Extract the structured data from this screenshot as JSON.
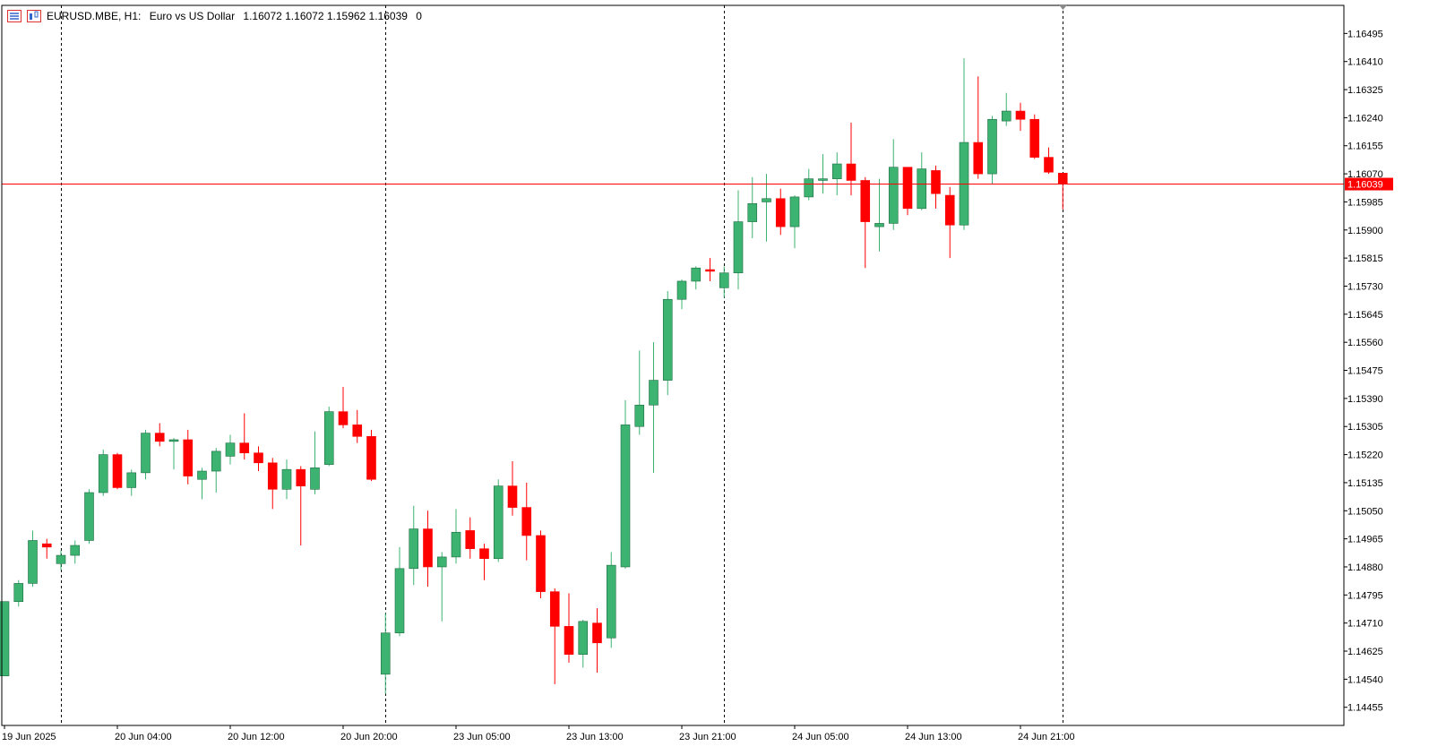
{
  "header": {
    "symbol": "EURUSD.MBE, H1:",
    "description": "Euro vs US Dollar",
    "ohlc": "1.16072 1.16072 1.15962 1.16039",
    "extra": "0"
  },
  "colors": {
    "bull": "#3cb371",
    "bear": "#ff0000",
    "outline": "#000000",
    "current_line": "#ff0000",
    "grid_separator": "#000000"
  },
  "chart_data": {
    "type": "candlestick",
    "symbol": "EURUSD.MBE",
    "timeframe": "H1",
    "ylim": [
      1.144,
      1.1658
    ],
    "y_ticks": [
      "1.16495",
      "1.16410",
      "1.16325",
      "1.16240",
      "1.16155",
      "1.16070",
      "1.15985",
      "1.15900",
      "1.15815",
      "1.15730",
      "1.15645",
      "1.15560",
      "1.15475",
      "1.15390",
      "1.15305",
      "1.15220",
      "1.15135",
      "1.15050",
      "1.14965",
      "1.14880",
      "1.14795",
      "1.14710",
      "1.14625",
      "1.14540",
      "1.14455"
    ],
    "x_ticks": [
      {
        "index": 0,
        "label": "19 Jun 2025"
      },
      {
        "index": 8,
        "label": "20 Jun 04:00"
      },
      {
        "index": 16,
        "label": "20 Jun 12:00"
      },
      {
        "index": 24,
        "label": "20 Jun 20:00"
      },
      {
        "index": 32,
        "label": "23 Jun 05:00"
      },
      {
        "index": 40,
        "label": "23 Jun 13:00"
      },
      {
        "index": 48,
        "label": "23 Jun 21:00"
      },
      {
        "index": 56,
        "label": "24 Jun 05:00"
      },
      {
        "index": 64,
        "label": "24 Jun 13:00"
      },
      {
        "index": 72,
        "label": "24 Jun 21:00"
      }
    ],
    "separators": [
      4,
      27,
      51,
      75
    ],
    "current_price": "1.16039",
    "candles": [
      [
        1.1455,
        1.14775,
        1.1455,
        1.14775
      ],
      [
        1.14775,
        1.1484,
        1.1476,
        1.1483
      ],
      [
        1.1483,
        1.1499,
        1.1482,
        1.1496
      ],
      [
        1.1495,
        1.14965,
        1.14905,
        1.1494
      ],
      [
        1.1489,
        1.1493,
        1.1487,
        1.14915
      ],
      [
        1.14915,
        1.1496,
        1.1489,
        1.14945
      ],
      [
        1.1496,
        1.15115,
        1.1495,
        1.15105
      ],
      [
        1.15105,
        1.15235,
        1.15095,
        1.1522
      ],
      [
        1.1522,
        1.15225,
        1.15115,
        1.1512
      ],
      [
        1.1512,
        1.15175,
        1.15095,
        1.15165
      ],
      [
        1.15165,
        1.15295,
        1.15145,
        1.15285
      ],
      [
        1.15285,
        1.15315,
        1.15245,
        1.1526
      ],
      [
        1.1526,
        1.1527,
        1.15175,
        1.15265
      ],
      [
        1.15265,
        1.15295,
        1.1513,
        1.15155
      ],
      [
        1.15145,
        1.1518,
        1.15085,
        1.1517
      ],
      [
        1.1517,
        1.1524,
        1.15105,
        1.1523
      ],
      [
        1.15215,
        1.1528,
        1.1519,
        1.15255
      ],
      [
        1.15255,
        1.15345,
        1.15205,
        1.15225
      ],
      [
        1.15225,
        1.15245,
        1.1517,
        1.15195
      ],
      [
        1.15195,
        1.1521,
        1.15055,
        1.15115
      ],
      [
        1.15115,
        1.15205,
        1.15085,
        1.15175
      ],
      [
        1.15175,
        1.15185,
        1.14945,
        1.15125
      ],
      [
        1.15115,
        1.1529,
        1.151,
        1.1518
      ],
      [
        1.1519,
        1.15365,
        1.15185,
        1.1535
      ],
      [
        1.1535,
        1.15425,
        1.153,
        1.1531
      ],
      [
        1.1531,
        1.15355,
        1.15255,
        1.15275
      ],
      [
        1.15275,
        1.15295,
        1.1514,
        1.15145
      ],
      [
        1.14555,
        1.1474,
        1.14495,
        1.1468
      ],
      [
        1.1468,
        1.1494,
        1.1467,
        1.14875
      ],
      [
        1.14875,
        1.15065,
        1.14825,
        1.14995
      ],
      [
        1.14995,
        1.1505,
        1.1482,
        1.1488
      ],
      [
        1.1488,
        1.14925,
        1.14715,
        1.1491
      ],
      [
        1.1491,
        1.15055,
        1.1489,
        1.14985
      ],
      [
        1.1499,
        1.1503,
        1.14905,
        1.14935
      ],
      [
        1.14935,
        1.1495,
        1.1484,
        1.14905
      ],
      [
        1.14905,
        1.15145,
        1.14895,
        1.15125
      ],
      [
        1.15125,
        1.152,
        1.15035,
        1.1506
      ],
      [
        1.1506,
        1.15135,
        1.149,
        1.14975
      ],
      [
        1.14975,
        1.1499,
        1.14785,
        1.14805
      ],
      [
        1.14805,
        1.14815,
        1.14525,
        1.147
      ],
      [
        1.147,
        1.148,
        1.1459,
        1.14615
      ],
      [
        1.14615,
        1.1472,
        1.14575,
        1.14715
      ],
      [
        1.1471,
        1.14755,
        1.1456,
        1.1465
      ],
      [
        1.14665,
        1.14925,
        1.14635,
        1.14885
      ],
      [
        1.1488,
        1.15385,
        1.14875,
        1.1531
      ],
      [
        1.15305,
        1.15535,
        1.1528,
        1.1537
      ],
      [
        1.1537,
        1.1556,
        1.15165,
        1.15445
      ],
      [
        1.15445,
        1.15715,
        1.154,
        1.1569
      ],
      [
        1.1569,
        1.1575,
        1.1566,
        1.15745
      ],
      [
        1.15745,
        1.1579,
        1.1572,
        1.15785
      ],
      [
        1.1578,
        1.15815,
        1.15745,
        1.15775
      ],
      [
        1.15725,
        1.1579,
        1.15695,
        1.1577
      ],
      [
        1.1577,
        1.1602,
        1.1572,
        1.15925
      ],
      [
        1.15925,
        1.1606,
        1.15875,
        1.1598
      ],
      [
        1.15985,
        1.1607,
        1.15865,
        1.15995
      ],
      [
        1.15995,
        1.16025,
        1.15885,
        1.1591
      ],
      [
        1.1591,
        1.16005,
        1.15845,
        1.16
      ],
      [
        1.16,
        1.16085,
        1.1599,
        1.16055
      ],
      [
        1.1605,
        1.1613,
        1.1601,
        1.16055
      ],
      [
        1.16055,
        1.16135,
        1.16005,
        1.161
      ],
      [
        1.161,
        1.16225,
        1.16005,
        1.1605
      ],
      [
        1.1605,
        1.1606,
        1.15785,
        1.15925
      ],
      [
        1.1591,
        1.16055,
        1.15835,
        1.1592
      ],
      [
        1.1592,
        1.16175,
        1.159,
        1.1609
      ],
      [
        1.1609,
        1.16085,
        1.15945,
        1.15965
      ],
      [
        1.15965,
        1.16135,
        1.1596,
        1.16085
      ],
      [
        1.1608,
        1.16095,
        1.15965,
        1.1601
      ],
      [
        1.16005,
        1.1603,
        1.15815,
        1.15915
      ],
      [
        1.15915,
        1.1642,
        1.159,
        1.16165
      ],
      [
        1.16165,
        1.16365,
        1.16055,
        1.1607
      ],
      [
        1.1607,
        1.16245,
        1.1604,
        1.16235
      ],
      [
        1.1623,
        1.16315,
        1.16215,
        1.1626
      ],
      [
        1.1626,
        1.16285,
        1.162,
        1.16235
      ],
      [
        1.16235,
        1.1625,
        1.16115,
        1.1612
      ],
      [
        1.1612,
        1.1615,
        1.1607,
        1.16075
      ],
      [
        1.16072,
        1.16072,
        1.15962,
        1.16039
      ]
    ]
  }
}
